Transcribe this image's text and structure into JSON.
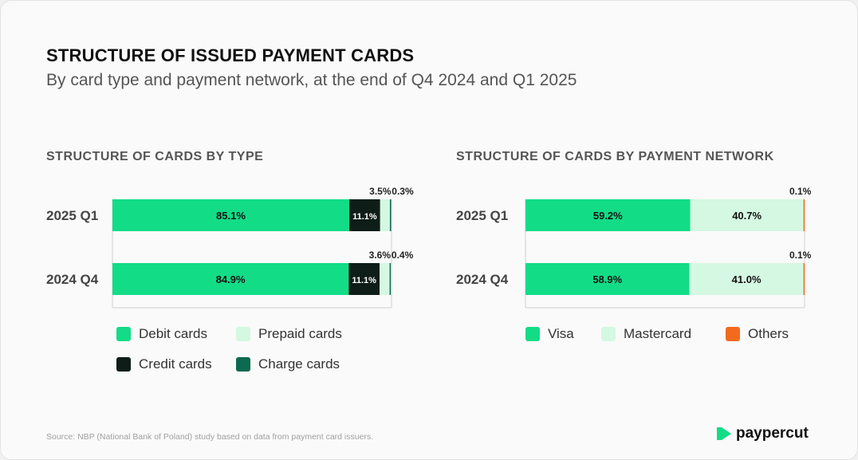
{
  "title": "STRUCTURE OF ISSUED PAYMENT CARDS",
  "subtitle": "By card type and payment network, at the end of Q4 2024 and Q1 2025",
  "colors": {
    "debit": "#13dc87",
    "prepaid": "#d4f8e1",
    "credit": "#0e1d18",
    "charge": "#0b6a4f",
    "visa": "#13dc87",
    "mastercard": "#d4f8e1",
    "others": "#f26b1d"
  },
  "chart_data": [
    {
      "type": "bar",
      "orientation": "horizontal-stacked",
      "title": "STRUCTURE OF CARDS BY TYPE",
      "categories": [
        "2025 Q1",
        "2024 Q4"
      ],
      "series": [
        {
          "name": "Debit cards",
          "values": [
            85.1,
            84.9
          ],
          "labels": [
            "85.1%",
            "84.9%"
          ]
        },
        {
          "name": "Credit cards",
          "values": [
            11.1,
            11.1
          ],
          "labels": [
            "11.1%",
            "11.1%"
          ]
        },
        {
          "name": "Prepaid cards",
          "values": [
            3.5,
            3.6
          ],
          "labels": [
            "3.5%",
            "3.6%"
          ]
        },
        {
          "name": "Charge cards",
          "values": [
            0.3,
            0.4
          ],
          "labels": [
            "0.3%",
            "0.4%"
          ]
        }
      ],
      "xlim": [
        0,
        100
      ],
      "legend": [
        "Debit cards",
        "Prepaid cards",
        "Credit cards",
        "Charge cards"
      ]
    },
    {
      "type": "bar",
      "orientation": "horizontal-stacked",
      "title": "STRUCTURE OF CARDS BY PAYMENT NETWORK",
      "categories": [
        "2025 Q1",
        "2024 Q4"
      ],
      "series": [
        {
          "name": "Visa",
          "values": [
            59.2,
            58.9
          ],
          "labels": [
            "59.2%",
            "58.9%"
          ]
        },
        {
          "name": "Mastercard",
          "values": [
            40.7,
            41.0
          ],
          "labels": [
            "40.7%",
            "41.0%"
          ]
        },
        {
          "name": "Others",
          "values": [
            0.1,
            0.1
          ],
          "labels": [
            "0.1%",
            "0.1%"
          ]
        }
      ],
      "xlim": [
        0,
        100
      ],
      "legend": [
        "Visa",
        "Mastercard",
        "Others"
      ]
    }
  ],
  "source": "Source: NBP (National Bank of Poland) study based on data from payment card issuers.",
  "brand": "paypercut"
}
